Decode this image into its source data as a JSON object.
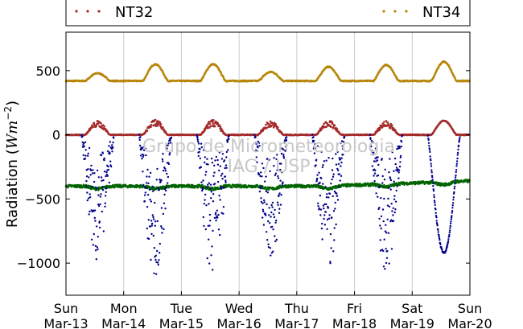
{
  "chart_data": {
    "type": "scatter",
    "ylabel": "Radiation (",
    "ylabel_unit_base": "Wm",
    "ylabel_unit_exp": "−2",
    "ylabel_close": ")",
    "ylim": [
      -1250,
      800
    ],
    "yticks": [
      500,
      0,
      -500,
      -1000
    ],
    "ytick_labels": [
      "500",
      "0",
      "−500",
      "−1000"
    ],
    "x_days": 7,
    "xtick_labels": [
      [
        "Sun",
        "Mar-13"
      ],
      [
        "Mon",
        "Mar-14"
      ],
      [
        "Tue",
        "Mar-15"
      ],
      [
        "Wed",
        "Mar-16"
      ],
      [
        "Thu",
        "Mar-17"
      ],
      [
        "Fri",
        "Mar-18"
      ],
      [
        "Sat",
        "Mar-19"
      ],
      [
        "Sun",
        "Mar-20"
      ]
    ],
    "grid": "vertical",
    "legend": {
      "placement": "top",
      "entries": [
        {
          "name": "NT32",
          "color": "#a52a2a"
        },
        {
          "name": "NT34",
          "color": "#b8860b"
        }
      ]
    },
    "watermark": [
      "Grupo de Micrometeorologia",
      "IAG / USP"
    ],
    "series": [
      {
        "key": "nt34",
        "color": "#b8860b",
        "base": 420,
        "daily_peak": [
          480,
          550,
          550,
          490,
          530,
          545,
          570
        ]
      },
      {
        "key": "nt32",
        "color": "#a52a2a",
        "base": 0,
        "daily_peak": [
          110,
          120,
          120,
          110,
          115,
          110,
          110
        ]
      },
      {
        "key": "green",
        "color": "#006400",
        "base": -400,
        "trend_end": -360
      },
      {
        "key": "blue",
        "color": "#00008b",
        "base": 0,
        "daily_min": [
          -980,
          -1090,
          -1130,
          -990,
          -1030,
          -1060,
          -920
        ]
      }
    ]
  }
}
